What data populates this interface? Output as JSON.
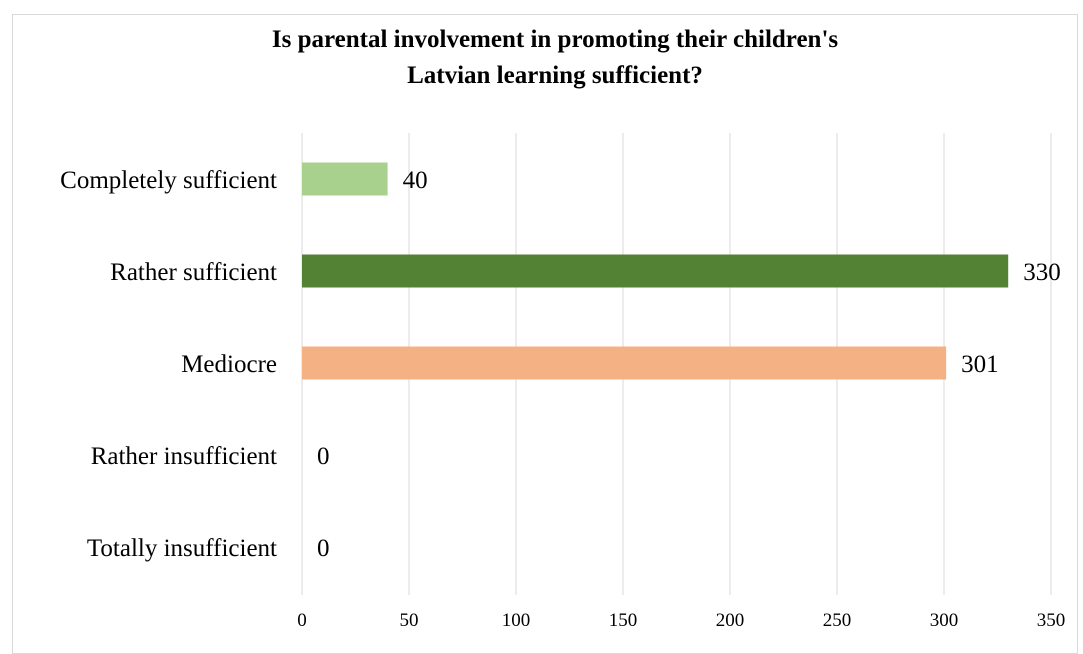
{
  "chart_data": {
    "type": "bar",
    "orientation": "horizontal",
    "title_lines": [
      "Is parental involvement in promoting their children's",
      "Latvian learning sufficient?"
    ],
    "categories": [
      "Completely sufficient",
      "Rather sufficient",
      "Mediocre",
      "Rather insufficient",
      "Totally insufficient"
    ],
    "values": [
      40,
      330,
      301,
      0,
      0
    ],
    "data_labels": [
      "40",
      "330",
      "301",
      "0",
      "0"
    ],
    "colors": [
      "#a9d18e",
      "#548235",
      "#f4b183",
      "#a5a5a5",
      "#a5a5a5"
    ],
    "xlim": [
      0,
      350
    ],
    "xticks": [
      "0",
      "50",
      "100",
      "150",
      "200",
      "250",
      "300",
      "350"
    ],
    "grid": "vertical"
  }
}
